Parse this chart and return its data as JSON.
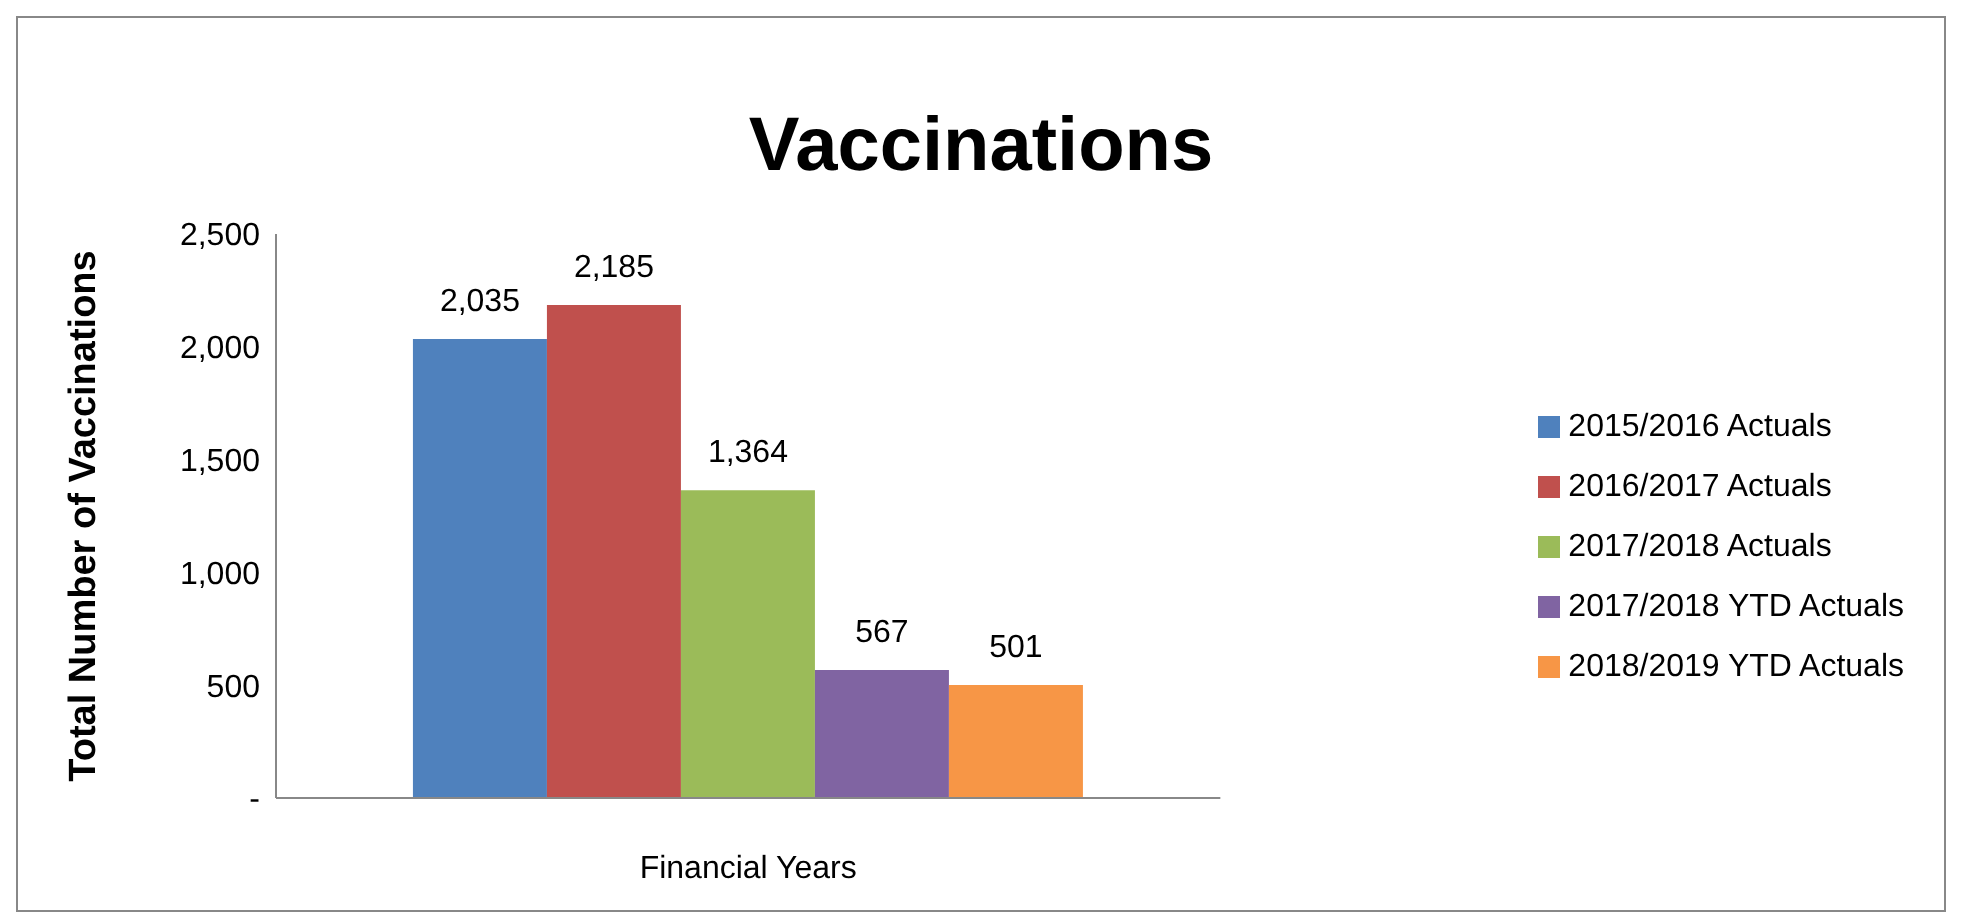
{
  "chart_data": {
    "type": "bar",
    "title": "Vaccinations",
    "xlabel": "Financial Years",
    "ylabel": "Total Number of Vaccinations",
    "categories": [
      null
    ],
    "series": [
      {
        "name": "2015/2016 Actuals",
        "color": "#4f81bd",
        "values": [
          2035
        ],
        "value_labels": [
          "2,035"
        ]
      },
      {
        "name": "2016/2017 Actuals",
        "color": "#c0504d",
        "values": [
          2185
        ],
        "value_labels": [
          "2,185"
        ]
      },
      {
        "name": "2017/2018 Actuals",
        "color": "#9bbb59",
        "values": [
          1364
        ],
        "value_labels": [
          "1,364"
        ]
      },
      {
        "name": "2017/2018 YTD Actuals",
        "color": "#8064a2",
        "values": [
          567
        ],
        "value_labels": [
          "567"
        ]
      },
      {
        "name": "2018/2019 YTD Actuals",
        "color": "#f79646",
        "values": [
          501
        ],
        "value_labels": [
          "501"
        ]
      }
    ],
    "ylim": [
      0,
      2500
    ],
    "yticks": [
      {
        "value": 0,
        "label": "-"
      },
      500,
      {
        "value": 1000,
        "label": "1,000"
      },
      {
        "value": 1500,
        "label": "1,500"
      },
      {
        "value": 2000,
        "label": "2,000"
      },
      {
        "value": 2500,
        "label": "2,500"
      }
    ],
    "grid": false,
    "legend": "right"
  }
}
